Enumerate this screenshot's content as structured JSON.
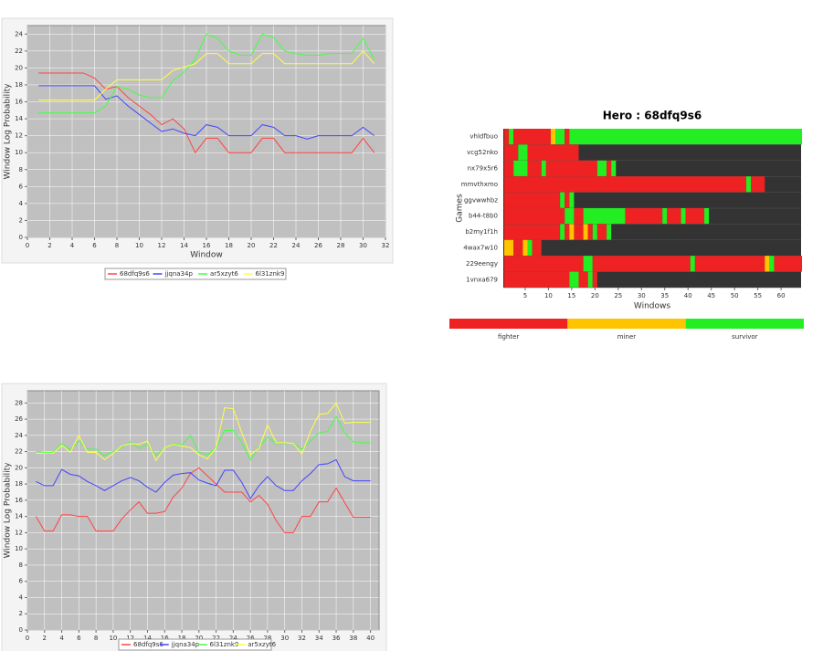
{
  "chart_data": [
    {
      "type": "line",
      "xlabel": "Window",
      "ylabel": "Window Log Probability",
      "xlim": [
        0,
        32
      ],
      "ylim": [
        0,
        25
      ],
      "xticks": [
        0,
        2,
        4,
        6,
        8,
        10,
        12,
        14,
        16,
        18,
        20,
        22,
        24,
        26,
        28,
        30,
        32
      ],
      "yticks": [
        0,
        2,
        4,
        6,
        8,
        10,
        12,
        14,
        16,
        18,
        20,
        22,
        24
      ],
      "grid": true,
      "background": "#c0c0c0",
      "x": [
        1,
        2,
        3,
        4,
        5,
        6,
        7,
        8,
        9,
        10,
        11,
        12,
        13,
        14,
        15,
        16,
        17,
        18,
        19,
        20,
        21,
        22,
        23,
        24,
        25,
        26,
        27,
        28,
        29,
        30,
        31
      ],
      "series": [
        {
          "name": "68dfq9s6",
          "color": "#ff4444",
          "values": [
            19.4,
            19.4,
            19.4,
            19.4,
            19.4,
            18.8,
            17.5,
            17.8,
            16.5,
            15.5,
            14.5,
            13.3,
            14,
            12.8,
            10,
            11.7,
            11.7,
            10,
            10,
            10,
            11.7,
            11.7,
            10,
            10,
            10,
            10,
            10,
            10,
            10,
            11.7,
            10
          ]
        },
        {
          "name": "jjqna34p",
          "color": "#4444ff",
          "values": [
            17.9,
            17.9,
            17.9,
            17.9,
            17.9,
            17.9,
            16.3,
            16.7,
            15.5,
            14.5,
            13.5,
            12.5,
            12.8,
            12.3,
            12,
            13.3,
            13,
            12,
            12,
            12,
            13.3,
            13,
            12,
            12,
            11.6,
            12,
            12,
            12,
            12,
            13,
            12
          ]
        },
        {
          "name": "ar5xzyt6",
          "color": "#44ff44",
          "values": [
            14.7,
            14.7,
            14.7,
            14.7,
            14.7,
            14.7,
            15.5,
            17.8,
            17.5,
            16.8,
            16.5,
            16.5,
            18.5,
            19.5,
            21,
            24,
            23.5,
            22,
            21.5,
            21.5,
            24,
            23.6,
            22,
            21.7,
            21.5,
            21.5,
            21.7,
            21.7,
            21.7,
            23.5,
            21
          ]
        },
        {
          "name": "6l31znk9",
          "color": "#ffff44",
          "values": [
            16.2,
            16.2,
            16.2,
            16.2,
            16.2,
            16.2,
            17.5,
            18.6,
            18.6,
            18.6,
            18.6,
            18.6,
            19.7,
            20.1,
            20.5,
            21.7,
            21.7,
            20.5,
            20.5,
            20.5,
            21.7,
            21.7,
            20.5,
            20.5,
            20.5,
            20.5,
            20.5,
            20.5,
            20.5,
            22,
            20.5
          ]
        }
      ]
    },
    {
      "type": "heatmap",
      "title": "Hero : 68dfq9s6",
      "xlabel": "Windows",
      "ylabel": "Games",
      "xlim": [
        0.3,
        64.3
      ],
      "xticks": [
        5,
        10,
        15,
        20,
        25,
        30,
        35,
        40,
        45,
        50,
        55,
        60
      ],
      "background": "#333333",
      "states": [
        {
          "label": "fighter",
          "color": "#ee2222"
        },
        {
          "label": "miner",
          "color": "#ffc400"
        },
        {
          "label": "survivor",
          "color": "#22ee22"
        }
      ],
      "rows": [
        {
          "name": "vhldfbuo",
          "runs": [
            [
              1,
              1,
              0
            ],
            [
              2,
              2,
              2
            ],
            [
              3,
              10,
              0
            ],
            [
              11,
              11,
              1
            ],
            [
              12,
              13,
              2
            ],
            [
              14,
              14,
              0
            ],
            [
              15,
              64,
              2
            ]
          ]
        },
        {
          "name": "vcg52nko",
          "runs": [
            [
              1,
              3,
              0
            ],
            [
              4,
              5,
              2
            ],
            [
              6,
              16,
              0
            ]
          ]
        },
        {
          "name": "nx79x5r6",
          "runs": [
            [
              1,
              2,
              0
            ],
            [
              3,
              5,
              2
            ],
            [
              6,
              8,
              0
            ],
            [
              9,
              9,
              2
            ],
            [
              10,
              20,
              0
            ],
            [
              21,
              22,
              2
            ],
            [
              23,
              23,
              0
            ],
            [
              24,
              24,
              2
            ]
          ]
        },
        {
          "name": "mmvthxmo",
          "runs": [
            [
              1,
              52,
              0
            ],
            [
              53,
              53,
              2
            ],
            [
              54,
              56,
              0
            ]
          ]
        },
        {
          "name": "ggvwwhbz",
          "runs": [
            [
              1,
              12,
              0
            ],
            [
              13,
              13,
              2
            ],
            [
              14,
              14,
              0
            ],
            [
              15,
              15,
              2
            ]
          ]
        },
        {
          "name": "b44-t8b0",
          "runs": [
            [
              1,
              13,
              0
            ],
            [
              14,
              15,
              2
            ],
            [
              16,
              17,
              0
            ],
            [
              18,
              26,
              2
            ],
            [
              27,
              34,
              0
            ],
            [
              35,
              35,
              2
            ],
            [
              36,
              38,
              0
            ],
            [
              39,
              39,
              2
            ],
            [
              40,
              43,
              0
            ],
            [
              44,
              44,
              2
            ]
          ]
        },
        {
          "name": "b2my1f1h",
          "runs": [
            [
              1,
              12,
              0
            ],
            [
              13,
              13,
              2
            ],
            [
              14,
              14,
              0
            ],
            [
              15,
              15,
              1
            ],
            [
              16,
              17,
              0
            ],
            [
              18,
              18,
              1
            ],
            [
              19,
              19,
              0
            ],
            [
              20,
              20,
              2
            ],
            [
              21,
              22,
              0
            ],
            [
              23,
              23,
              2
            ]
          ]
        },
        {
          "name": "4wax7w10",
          "runs": [
            [
              1,
              2,
              1
            ],
            [
              3,
              4,
              0
            ],
            [
              5,
              5,
              1
            ],
            [
              6,
              6,
              2
            ],
            [
              7,
              8,
              0
            ]
          ]
        },
        {
          "name": "229eengy",
          "runs": [
            [
              1,
              17,
              0
            ],
            [
              18,
              19,
              2
            ],
            [
              20,
              40,
              0
            ],
            [
              41,
              41,
              2
            ],
            [
              42,
              56,
              0
            ],
            [
              57,
              57,
              1
            ],
            [
              58,
              58,
              2
            ],
            [
              59,
              64,
              0
            ]
          ]
        },
        {
          "name": "1vnxa679",
          "runs": [
            [
              1,
              14,
              0
            ],
            [
              15,
              16,
              2
            ],
            [
              17,
              18,
              0
            ],
            [
              19,
              19,
              2
            ],
            [
              20,
              20,
              0
            ]
          ]
        }
      ]
    },
    {
      "type": "line",
      "xlabel": "Window",
      "ylabel": "Window Log Probability",
      "xlim": [
        0,
        41
      ],
      "ylim": [
        0,
        29.5
      ],
      "xticks": [
        0,
        2,
        4,
        6,
        8,
        10,
        12,
        14,
        16,
        18,
        20,
        22,
        24,
        26,
        28,
        30,
        32,
        34,
        36,
        38,
        40
      ],
      "yticks": [
        0,
        2,
        4,
        6,
        8,
        10,
        12,
        14,
        16,
        18,
        20,
        22,
        24,
        26,
        28
      ],
      "grid": true,
      "background": "#c0c0c0",
      "x": [
        1,
        2,
        3,
        4,
        5,
        6,
        7,
        8,
        9,
        10,
        11,
        12,
        13,
        14,
        15,
        16,
        17,
        18,
        19,
        20,
        21,
        22,
        23,
        24,
        25,
        26,
        27,
        28,
        29,
        30,
        31,
        32,
        33,
        34,
        35,
        36,
        37,
        38,
        39,
        40
      ],
      "series": [
        {
          "name": "68dfq9s6",
          "color": "#ff4444",
          "values": [
            14,
            12.2,
            12.2,
            14.2,
            14.2,
            14,
            14,
            12.2,
            12.2,
            12.2,
            13.7,
            14.8,
            15.8,
            14.4,
            14.4,
            14.6,
            16.4,
            17.5,
            19.3,
            20,
            19,
            18,
            17,
            17,
            17,
            15.8,
            16.6,
            15.5,
            13.5,
            12,
            12,
            14,
            14,
            15.8,
            15.8,
            17.5,
            15.7,
            13.9,
            13.9,
            13.9
          ]
        },
        {
          "name": "jjqna34p",
          "color": "#4444ff",
          "values": [
            18.3,
            17.8,
            17.8,
            19.8,
            19.2,
            19,
            18.3,
            17.8,
            17.2,
            17.8,
            18.4,
            18.8,
            18.4,
            17.6,
            17,
            18.2,
            19.1,
            19.3,
            19.4,
            18.5,
            18.1,
            17.8,
            19.7,
            19.7,
            18.2,
            16.2,
            17.8,
            18.9,
            17.8,
            17.2,
            17.2,
            18.4,
            19.3,
            20.4,
            20.5,
            21,
            18.9,
            18.4,
            18.4,
            18.4
          ]
        },
        {
          "name": "6l31znk9",
          "color": "#44ff44",
          "values": [
            22,
            21.9,
            21.9,
            23,
            22.2,
            23.3,
            22.3,
            22.3,
            21.5,
            22,
            22.5,
            23.2,
            22.4,
            22.9,
            21.5,
            22.5,
            23,
            22.8,
            24,
            21.9,
            21.6,
            22.5,
            24.6,
            24.6,
            23.1,
            21,
            22.6,
            23.8,
            23,
            23,
            23,
            22.3,
            23.3,
            24.3,
            24.5,
            26.3,
            24.3,
            23.2,
            23.1,
            23.1
          ]
        },
        {
          "name": "ar5xzyt6",
          "color": "#ffff44",
          "values": [
            21.8,
            21.8,
            21.8,
            22.8,
            21.9,
            24,
            21.9,
            21.9,
            21,
            21.8,
            22.7,
            23,
            22.9,
            23.3,
            20.9,
            22.5,
            22.9,
            22.7,
            22.5,
            21.6,
            21.1,
            22.5,
            27.4,
            27.3,
            24.3,
            21.6,
            22.4,
            25.3,
            23.1,
            23.1,
            23,
            21.7,
            24.5,
            26.6,
            26.7,
            28,
            25.5,
            25.6,
            25.6,
            25.6
          ]
        }
      ]
    }
  ]
}
